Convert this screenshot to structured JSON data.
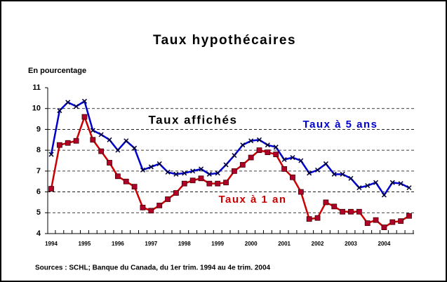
{
  "chart_data": {
    "type": "line",
    "title": "Taux hypothécaires",
    "y_label": "En pourcentage",
    "annotation": "Taux affichés",
    "source": "Sources : SCHL; Banque du Canada, du 1er trim. 1994 au 4e trim. 2004",
    "categories": [
      "1994",
      null,
      null,
      null,
      "1995",
      null,
      null,
      null,
      "1996",
      null,
      null,
      null,
      "1997",
      null,
      null,
      null,
      "1998",
      null,
      null,
      null,
      "1999",
      null,
      null,
      null,
      "2000",
      null,
      null,
      null,
      "2001",
      null,
      null,
      null,
      "2002",
      null,
      null,
      null,
      "2003",
      null,
      null,
      null,
      "2004",
      null,
      null,
      null
    ],
    "series": [
      {
        "name": "Taux à 5 ans",
        "color": "#0000cc",
        "marker_color": "#000033",
        "values": [
          7.8,
          9.9,
          10.3,
          10.1,
          10.35,
          8.95,
          8.75,
          8.5,
          8.0,
          8.45,
          8.1,
          7.05,
          7.2,
          7.35,
          6.95,
          6.85,
          6.9,
          7.0,
          7.1,
          6.85,
          6.9,
          7.3,
          7.75,
          8.25,
          8.45,
          8.5,
          8.25,
          8.15,
          7.55,
          7.65,
          7.5,
          6.9,
          7.05,
          7.35,
          6.85,
          6.85,
          6.65,
          6.2,
          6.3,
          6.45,
          5.85,
          6.45,
          6.4,
          6.2
        ]
      },
      {
        "name": "Taux à 1 an",
        "color": "#cc0000",
        "marker_color": "#b0002a",
        "values": [
          6.15,
          8.25,
          8.35,
          8.45,
          9.6,
          8.5,
          7.95,
          7.4,
          6.75,
          6.5,
          6.25,
          5.25,
          5.1,
          5.35,
          5.65,
          5.95,
          6.4,
          6.55,
          6.65,
          6.4,
          6.4,
          6.45,
          7.0,
          7.3,
          7.65,
          8.0,
          7.9,
          7.8,
          7.1,
          6.7,
          6.0,
          4.7,
          4.75,
          5.5,
          5.3,
          5.05,
          5.05,
          5.05,
          4.5,
          4.65,
          4.3,
          4.55,
          4.6,
          4.85
        ]
      }
    ],
    "ylim": [
      4,
      11
    ],
    "yticks": [
      4,
      5,
      6,
      7,
      8,
      9,
      10,
      11
    ],
    "grid": true
  }
}
